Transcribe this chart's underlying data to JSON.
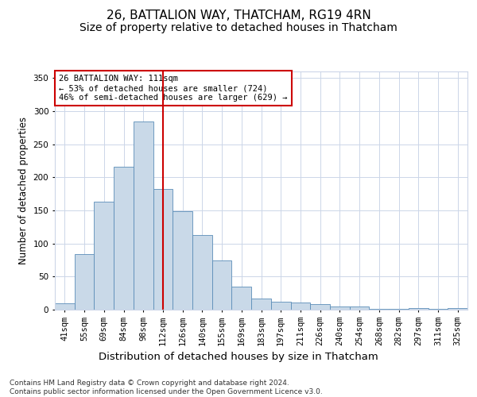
{
  "title1": "26, BATTALION WAY, THATCHAM, RG19 4RN",
  "title2": "Size of property relative to detached houses in Thatcham",
  "xlabel": "Distribution of detached houses by size in Thatcham",
  "ylabel": "Number of detached properties",
  "categories": [
    "41sqm",
    "55sqm",
    "69sqm",
    "84sqm",
    "98sqm",
    "112sqm",
    "126sqm",
    "140sqm",
    "155sqm",
    "169sqm",
    "183sqm",
    "197sqm",
    "211sqm",
    "226sqm",
    "240sqm",
    "254sqm",
    "268sqm",
    "282sqm",
    "297sqm",
    "311sqm",
    "325sqm"
  ],
  "values": [
    10,
    84,
    163,
    216,
    284,
    183,
    149,
    113,
    74,
    35,
    17,
    12,
    11,
    8,
    5,
    5,
    1,
    1,
    2,
    1,
    3
  ],
  "bar_color": "#c9d9e8",
  "bar_edge_color": "#5b8db8",
  "vline_x": 5,
  "vline_color": "#cc0000",
  "annotation_text": "26 BATTALION WAY: 111sqm\n← 53% of detached houses are smaller (724)\n46% of semi-detached houses are larger (629) →",
  "annotation_box_color": "#ffffff",
  "annotation_box_edge": "#cc0000",
  "ylim": [
    0,
    360
  ],
  "yticks": [
    0,
    50,
    100,
    150,
    200,
    250,
    300,
    350
  ],
  "footer": "Contains HM Land Registry data © Crown copyright and database right 2024.\nContains public sector information licensed under the Open Government Licence v3.0.",
  "bg_color": "#ffffff",
  "grid_color": "#ccd6e8",
  "title1_fontsize": 11,
  "title2_fontsize": 10,
  "xlabel_fontsize": 9.5,
  "ylabel_fontsize": 8.5,
  "tick_fontsize": 7.5,
  "annot_fontsize": 7.5,
  "footer_fontsize": 6.5
}
